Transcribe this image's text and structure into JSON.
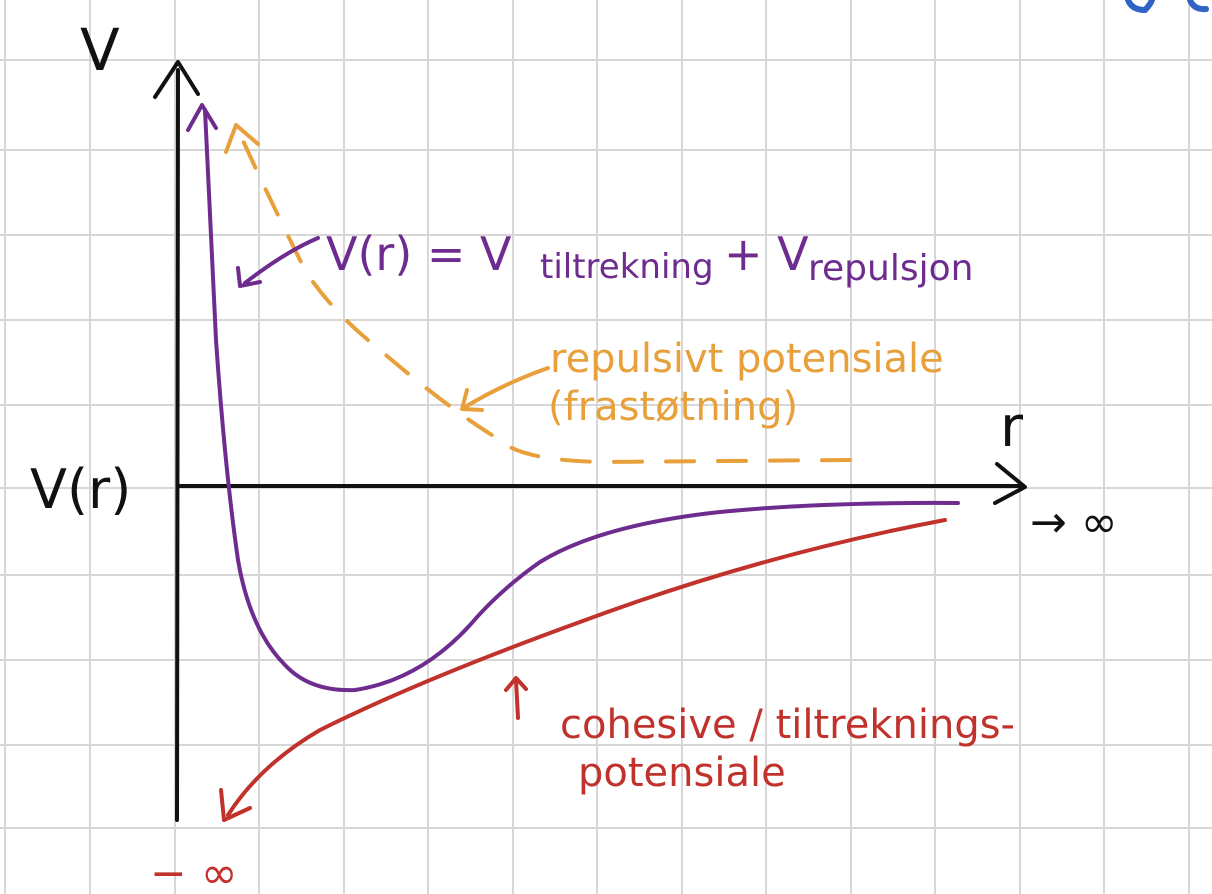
{
  "labels": {
    "v_axis": "V",
    "r_axis": "r",
    "v_of_r": "V(r)",
    "to_infinity": "→ ∞",
    "minus_infinity": "− ∞",
    "total_formula_main": "V(r) = V",
    "total_sub_attraction": "tiltrekning",
    "total_plus": "+ V",
    "total_sub_repulsion": "repulsjon",
    "repulsive_line1": "repulsivt potensiale",
    "repulsive_line2": "(frastøtning)",
    "cohesive_line1": "cohesive / tiltreknings-",
    "cohesive_line2": "potensiale"
  },
  "colors": {
    "grid": "#d7d7d7",
    "axes": "#111111",
    "total_potential": "#6e2c8f",
    "repulsive_potential": "#e8a03c",
    "cohesive_potential": "#c0322b",
    "corner_mark": "#2f63c4"
  },
  "icons": {
    "total_pointer": "arrow-icon",
    "repulsive_pointer": "arrow-icon",
    "cohesive_pointer": "arrow-icon"
  }
}
